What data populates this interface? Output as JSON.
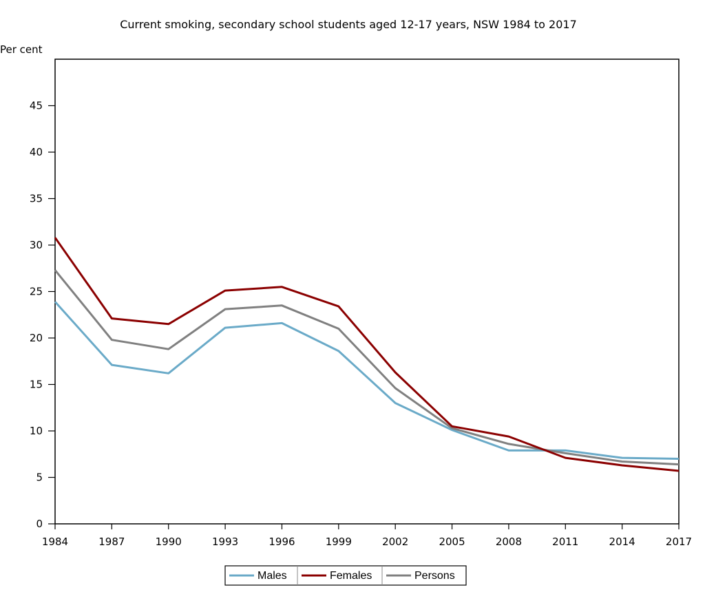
{
  "chart_data": {
    "type": "line",
    "title": "Current smoking, secondary school students aged 12-17 years, NSW 1984 to 2017",
    "ylabel": "Per cent",
    "xlabel": "",
    "categories": [
      "1984",
      "1987",
      "1990",
      "1993",
      "1996",
      "1999",
      "2002",
      "2005",
      "2008",
      "2011",
      "2014",
      "2017"
    ],
    "ylim": [
      0,
      50
    ],
    "yticks": [
      0,
      5,
      10,
      15,
      20,
      25,
      30,
      35,
      40,
      45
    ],
    "grid": false,
    "legend_position": "bottom-center",
    "series": [
      {
        "name": "Males",
        "color": "#6aaac8",
        "values": [
          23.9,
          17.1,
          16.2,
          21.1,
          21.6,
          18.6,
          13.0,
          10.1,
          7.9,
          7.9,
          7.1,
          7.0
        ]
      },
      {
        "name": "Females",
        "color": "#8b0000",
        "values": [
          30.8,
          22.1,
          21.5,
          25.1,
          25.5,
          23.4,
          16.3,
          10.5,
          9.4,
          7.1,
          6.3,
          5.7
        ]
      },
      {
        "name": "Persons",
        "color": "#808080",
        "values": [
          27.3,
          19.8,
          18.8,
          23.1,
          23.5,
          21.0,
          14.6,
          10.3,
          8.6,
          7.6,
          6.7,
          6.4
        ]
      }
    ]
  }
}
